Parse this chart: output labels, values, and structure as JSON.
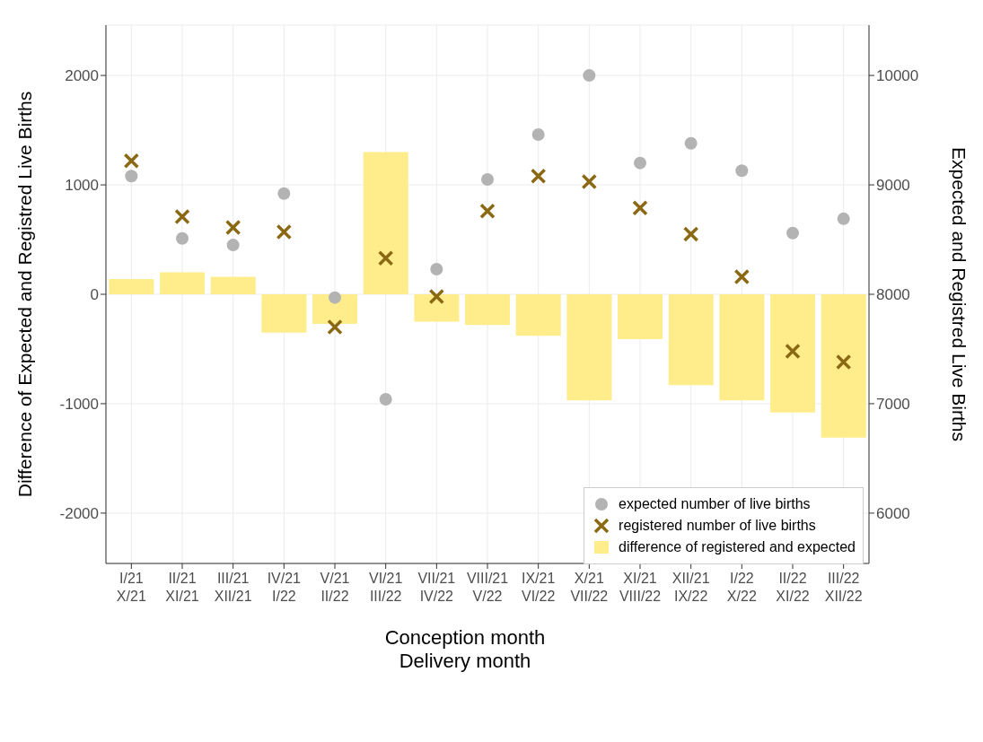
{
  "chart_data": {
    "type": "bar",
    "xlabel": "Conception month\nDelivery month",
    "ylabel": "Difference of Expected and Registred Live Births",
    "y2label": "Expected and Registred Live Births",
    "categories": [
      "I/21\nX/21",
      "II/21\nXI/21",
      "III/21\nXII/21",
      "IV/21\nI/22",
      "V/21\nII/22",
      "VI/21\nIII/22",
      "VII/21\nIV/22",
      "VIII/21\nV/22",
      "IX/21\nVI/22",
      "X/21\nVII/22",
      "XI/21\nVIII/22",
      "XII/21\nIX/22",
      "I/22\nX/22",
      "II/22\nXI/22",
      "III/22\nXII/22"
    ],
    "series": [
      {
        "name": "expected number of live births",
        "type": "scatter",
        "marker": "circle",
        "axis": "y2",
        "color": "#b3b3b3",
        "values": [
          9080,
          8510,
          8450,
          8920,
          7970,
          7040,
          8230,
          9050,
          9460,
          10000,
          9200,
          9380,
          9130,
          8560,
          8690
        ]
      },
      {
        "name": "registered number of live births",
        "type": "scatter",
        "marker": "cross",
        "axis": "y2",
        "color": "#8b6914",
        "values": [
          9220,
          8710,
          8610,
          8570,
          7700,
          8330,
          7980,
          8760,
          9080,
          9030,
          8790,
          8550,
          8160,
          7480,
          7380
        ]
      },
      {
        "name": "difference of registered and expected",
        "color": "#ffec8b",
        "values": [
          140,
          200,
          160,
          -350,
          -270,
          1300,
          -250,
          -280,
          -380,
          -970,
          -410,
          -830,
          -970,
          -1080,
          -1310
        ]
      }
    ],
    "ylim": [
      -2460,
      2460
    ],
    "yticks": [
      -2000,
      -1000,
      0,
      1000,
      2000
    ],
    "y2lim": [
      5540,
      10460
    ],
    "y2ticks": [
      6000,
      7000,
      8000,
      9000,
      10000
    ],
    "grid": true,
    "legend": "bottom right"
  }
}
